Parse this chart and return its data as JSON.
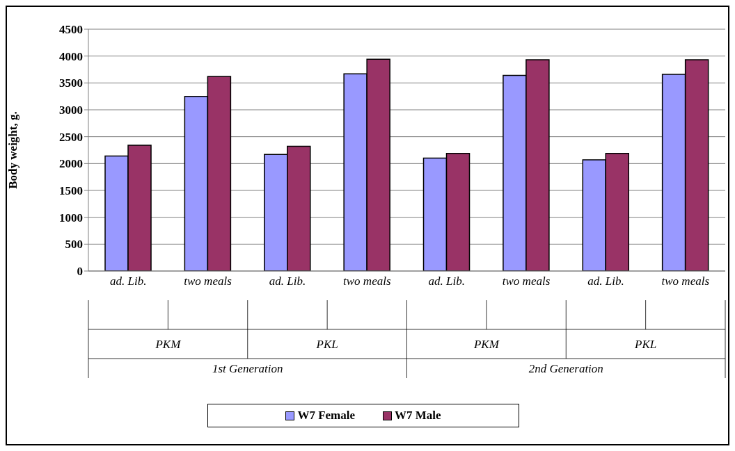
{
  "chart_data": {
    "type": "bar",
    "categories": [
      "ad. Lib.",
      "two meals",
      "ad. Lib.",
      "two meals",
      "ad. Lib.",
      "two meals",
      "ad. Lib.",
      "two meals"
    ],
    "annotations": [
      "PKM",
      "PKL",
      "PKM",
      "PKL",
      "1st Generation",
      "2nd Generation"
    ],
    "ylabel": "Body weight, g.",
    "series": [
      {
        "name": "W7 Female",
        "color": "#9999ff",
        "values": [
          2140,
          3250,
          2170,
          3670,
          2100,
          3640,
          2070,
          3660
        ]
      },
      {
        "name": "W7 Male",
        "color": "#993366",
        "values": [
          2340,
          3620,
          2320,
          3940,
          2190,
          3930,
          2190,
          3930
        ]
      }
    ],
    "ylim": [
      0,
      4500
    ],
    "yticks": [
      0,
      500,
      1000,
      1500,
      2000,
      2500,
      3000,
      3500,
      4000,
      4500
    ],
    "grid": "y",
    "legend": "bottom"
  }
}
